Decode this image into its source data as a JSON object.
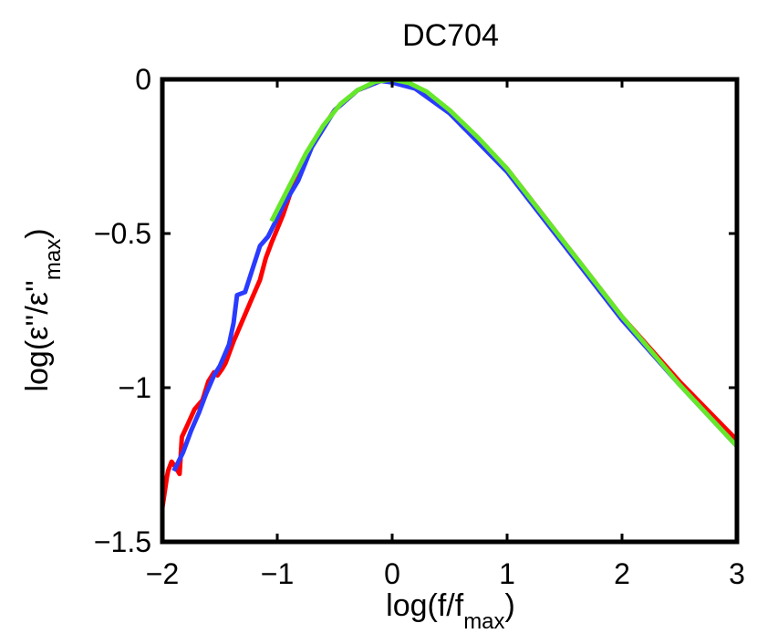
{
  "chart_data": {
    "type": "line",
    "title": "DC704",
    "xlabel": "log(f/f_max)",
    "xlabel_main": "log(f/f",
    "xlabel_sub": "max",
    "xlabel_close": ")",
    "ylabel": "log(ε''/ε''_max)",
    "ylabel_main": "log(ε''/ε''",
    "ylabel_sub": "max",
    "ylabel_close": ")",
    "xlim": [
      -2,
      3
    ],
    "ylim": [
      -1.5,
      0
    ],
    "xticks": [
      -2,
      -1,
      0,
      1,
      2,
      3
    ],
    "xtick_labels": [
      "−2",
      "−1",
      "0",
      "1",
      "2",
      "3"
    ],
    "yticks": [
      -1.5,
      -1,
      -0.5,
      0
    ],
    "ytick_labels": [
      "−1.5",
      "−1",
      "−0.5",
      "0"
    ],
    "grid": false,
    "series": [
      {
        "name": "red",
        "color": "#ff0000",
        "x": [
          -2.0,
          -1.98,
          -1.96,
          -1.95,
          -1.92,
          -1.88,
          -1.85,
          -1.83,
          -1.78,
          -1.72,
          -1.65,
          -1.6,
          -1.55,
          -1.52,
          -1.48,
          -1.45,
          -1.38,
          -1.3,
          -1.22,
          -1.15,
          -1.1,
          -1.05,
          -0.95,
          -0.85,
          -0.7,
          -0.5,
          -0.3,
          -0.1,
          0.0,
          0.2,
          0.5,
          1.0,
          1.5,
          2.0,
          2.5,
          3.0
        ],
        "values": [
          -1.39,
          -1.34,
          -1.29,
          -1.27,
          -1.24,
          -1.26,
          -1.28,
          -1.16,
          -1.12,
          -1.07,
          -1.04,
          -0.98,
          -0.95,
          -0.96,
          -0.94,
          -0.92,
          -0.85,
          -0.78,
          -0.71,
          -0.65,
          -0.58,
          -0.53,
          -0.44,
          -0.33,
          -0.21,
          -0.1,
          -0.035,
          -0.005,
          0.0,
          -0.025,
          -0.1,
          -0.29,
          -0.53,
          -0.77,
          -0.98,
          -1.17
        ]
      },
      {
        "name": "blue",
        "color": "#2a3bff",
        "x": [
          -1.9,
          -1.82,
          -1.75,
          -1.68,
          -1.62,
          -1.55,
          -1.5,
          -1.42,
          -1.38,
          -1.35,
          -1.28,
          -1.22,
          -1.15,
          -1.08,
          -1.0,
          -0.95,
          -0.82,
          -0.7,
          -0.5,
          -0.3,
          -0.1,
          0.0,
          0.2,
          0.5,
          1.0,
          1.5,
          2.0,
          2.5,
          3.0
        ],
        "values": [
          -1.27,
          -1.21,
          -1.14,
          -1.08,
          -1.02,
          -0.96,
          -0.93,
          -0.86,
          -0.79,
          -0.7,
          -0.69,
          -0.62,
          -0.54,
          -0.51,
          -0.45,
          -0.41,
          -0.33,
          -0.22,
          -0.1,
          -0.035,
          -0.005,
          -0.01,
          -0.03,
          -0.11,
          -0.3,
          -0.54,
          -0.78,
          -0.99,
          -1.19
        ]
      },
      {
        "name": "green",
        "color": "#66e82a",
        "x": [
          -1.05,
          -0.9,
          -0.75,
          -0.6,
          -0.45,
          -0.3,
          -0.15,
          0.0,
          0.15,
          0.3,
          0.5,
          0.75,
          1.0,
          1.25,
          1.5,
          1.75,
          2.0,
          2.25,
          2.5,
          2.75,
          3.0
        ],
        "values": [
          -0.46,
          -0.35,
          -0.24,
          -0.15,
          -0.08,
          -0.035,
          -0.008,
          0.0,
          -0.012,
          -0.04,
          -0.1,
          -0.19,
          -0.29,
          -0.41,
          -0.53,
          -0.65,
          -0.77,
          -0.88,
          -0.99,
          -1.09,
          -1.19
        ]
      }
    ]
  }
}
